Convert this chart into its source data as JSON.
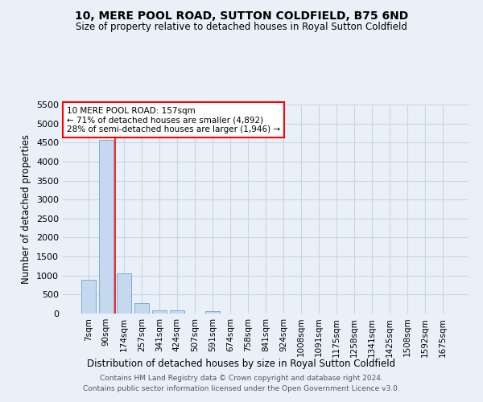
{
  "title": "10, MERE POOL ROAD, SUTTON COLDFIELD, B75 6ND",
  "subtitle": "Size of property relative to detached houses in Royal Sutton Coldfield",
  "xlabel": "Distribution of detached houses by size in Royal Sutton Coldfield",
  "ylabel": "Number of detached properties",
  "footer_line1": "Contains HM Land Registry data © Crown copyright and database right 2024.",
  "footer_line2": "Contains public sector information licensed under the Open Government Licence v3.0.",
  "categories": [
    "7sqm",
    "90sqm",
    "174sqm",
    "257sqm",
    "341sqm",
    "424sqm",
    "507sqm",
    "591sqm",
    "674sqm",
    "758sqm",
    "841sqm",
    "924sqm",
    "1008sqm",
    "1091sqm",
    "1175sqm",
    "1258sqm",
    "1341sqm",
    "1425sqm",
    "1508sqm",
    "1592sqm",
    "1675sqm"
  ],
  "values": [
    880,
    4560,
    1060,
    285,
    80,
    80,
    0,
    55,
    0,
    0,
    0,
    0,
    0,
    0,
    0,
    0,
    0,
    0,
    0,
    0,
    0
  ],
  "bar_color": "#c5d8f0",
  "bar_edge_color": "#7bafd4",
  "grid_color": "#c8d4e8",
  "background_color": "#eaf0f8",
  "annotation_line1": "10 MERE POOL ROAD: 157sqm",
  "annotation_line2": "← 71% of detached houses are smaller (4,892)",
  "annotation_line3": "28% of semi-detached houses are larger (1,946) →",
  "red_line_x": 1.5,
  "ylim": [
    0,
    5500
  ],
  "yticks": [
    0,
    500,
    1000,
    1500,
    2000,
    2500,
    3000,
    3500,
    4000,
    4500,
    5000,
    5500
  ]
}
